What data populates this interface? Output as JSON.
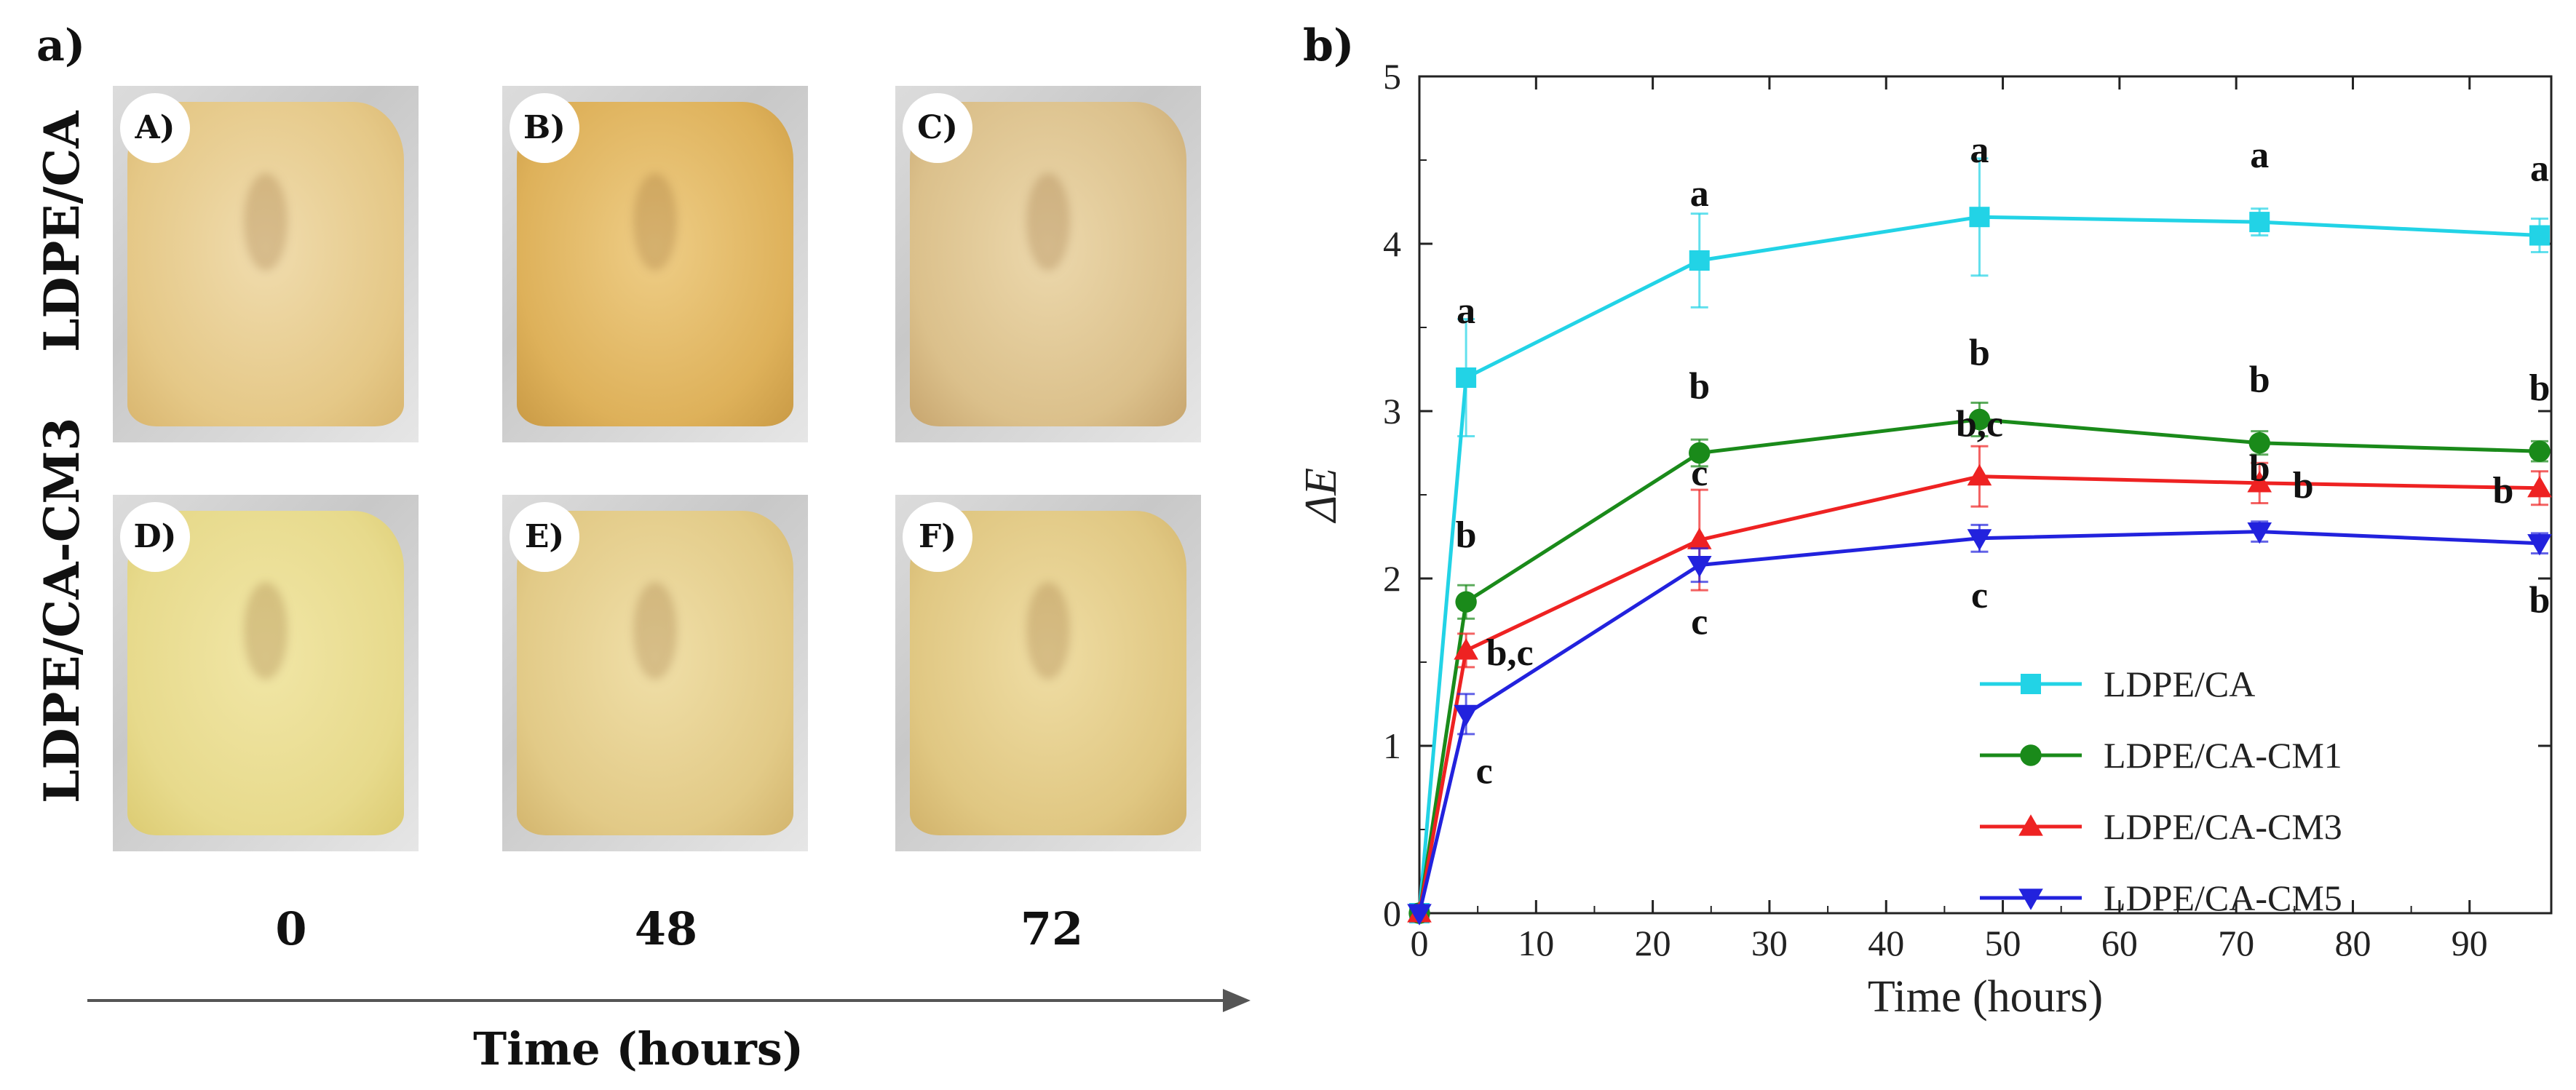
{
  "panel_a": {
    "label": "a)",
    "row_labels": [
      "LDPE/CA",
      "LDPE/CA-CM3"
    ],
    "photos": [
      {
        "badge": "A)"
      },
      {
        "badge": "B)"
      },
      {
        "badge": "C)"
      },
      {
        "badge": "D)"
      },
      {
        "badge": "E)"
      },
      {
        "badge": "F)"
      }
    ],
    "time_ticks": [
      "0",
      "48",
      "72"
    ],
    "axis_title": "Time (hours)"
  },
  "panel_b": {
    "label": "b)"
  },
  "chart_data": {
    "type": "line",
    "xlabel": "Time (hours)",
    "ylabel": "ΔE",
    "xlim": [
      0,
      97
    ],
    "ylim": [
      0,
      5
    ],
    "xticks": [
      0,
      10,
      20,
      30,
      40,
      50,
      60,
      70,
      80,
      90
    ],
    "yticks": [
      0,
      1,
      2,
      3,
      4,
      5
    ],
    "legend_position": "bottom-right",
    "grid": false,
    "x": [
      0,
      4,
      24,
      48,
      72,
      96
    ],
    "series": [
      {
        "name": "LDPE/CA",
        "color": "#22d3e6",
        "marker": "square",
        "values": [
          0,
          3.2,
          3.9,
          4.16,
          4.13,
          4.05
        ],
        "errors": [
          0,
          0.35,
          0.28,
          0.35,
          0.08,
          0.1
        ],
        "letters": [
          "",
          "a",
          "a",
          "a",
          "a",
          "a"
        ]
      },
      {
        "name": "LDPE/CA-CM1",
        "color": "#1a8a1a",
        "marker": "circle",
        "values": [
          0,
          1.86,
          2.75,
          2.95,
          2.81,
          2.76
        ],
        "errors": [
          0,
          0.1,
          0.08,
          0.1,
          0.07,
          0.06
        ],
        "letters": [
          "",
          "b",
          "b",
          "b",
          "b",
          "b"
        ]
      },
      {
        "name": "LDPE/CA-CM3",
        "color": "#ee2222",
        "marker": "triangle-up",
        "values": [
          0,
          1.57,
          2.23,
          2.61,
          2.57,
          2.54
        ],
        "errors": [
          0,
          0.1,
          0.3,
          0.18,
          0.12,
          0.1
        ],
        "letters": [
          "",
          "b,c",
          "c",
          "b,c",
          "b",
          "b"
        ]
      },
      {
        "name": "LDPE/CA-CM5",
        "color": "#2222dd",
        "marker": "triangle-down",
        "values": [
          0,
          1.19,
          2.08,
          2.24,
          2.28,
          2.21
        ],
        "errors": [
          0,
          0.12,
          0.1,
          0.08,
          0.06,
          0.06
        ],
        "letters": [
          "",
          "c",
          "c",
          "c",
          "b",
          "b"
        ]
      }
    ]
  }
}
